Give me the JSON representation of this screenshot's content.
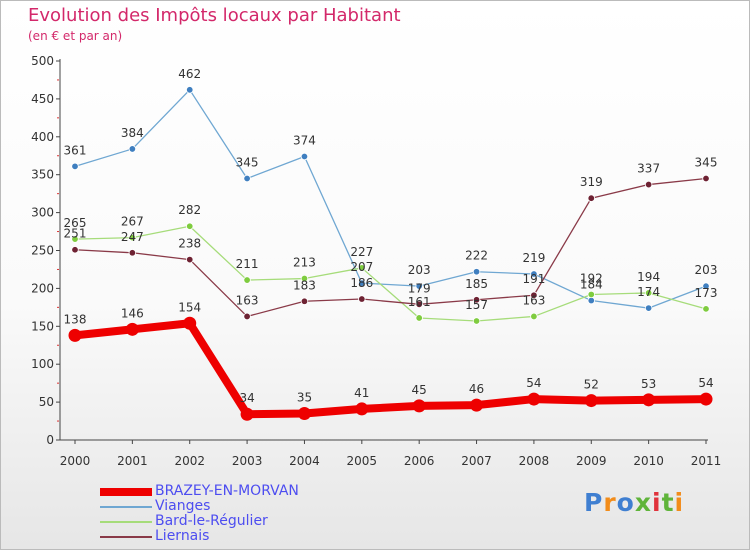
{
  "title": "Evolution des Impôts locaux par Habitant",
  "subtitle": "(en € et par an)",
  "logo": {
    "text": "Proxiti",
    "colors": [
      "#3f7fd1",
      "#f28c1a",
      "#3f7fd1",
      "#5fb43a",
      "#e0323c",
      "#5fb43a",
      "#f28c1a"
    ]
  },
  "chart_data": {
    "type": "line",
    "title": "Evolution des Impôts locaux par Habitant",
    "subtitle": "(en € et par an)",
    "xlabel": "",
    "ylabel": "",
    "ylim": [
      0,
      500
    ],
    "yticks": [
      0,
      50,
      100,
      150,
      200,
      250,
      300,
      350,
      400,
      450,
      500
    ],
    "grid": false,
    "legend_position": "bottom-left",
    "x": [
      "2000",
      "2001",
      "2002",
      "2003",
      "2004",
      "2005",
      "2006",
      "2007",
      "2008",
      "2009",
      "2010",
      "2011"
    ],
    "series": [
      {
        "name": "BRAZEY-EN-MORVAN",
        "color": "#ee0000",
        "marker": "#ee0000",
        "width": 8,
        "values": [
          138,
          146,
          154,
          34,
          35,
          41,
          45,
          46,
          54,
          52,
          53,
          54
        ]
      },
      {
        "name": "Vianges",
        "color": "#6fa7d2",
        "marker": "#3f7fc0",
        "width": 1.3,
        "values": [
          361,
          384,
          462,
          345,
          374,
          207,
          203,
          222,
          219,
          184,
          174,
          203
        ]
      },
      {
        "name": "Bard-le-Régulier",
        "color": "#a6dc7a",
        "marker": "#7fcc3f",
        "width": 1.3,
        "values": [
          265,
          267,
          282,
          211,
          213,
          227,
          161,
          157,
          163,
          192,
          194,
          173
        ]
      },
      {
        "name": "Liernais",
        "color": "#8a3a48",
        "marker": "#6e2233",
        "width": 1.3,
        "values": [
          251,
          247,
          238,
          163,
          183,
          186,
          179,
          185,
          191,
          319,
          337,
          345
        ]
      }
    ]
  }
}
